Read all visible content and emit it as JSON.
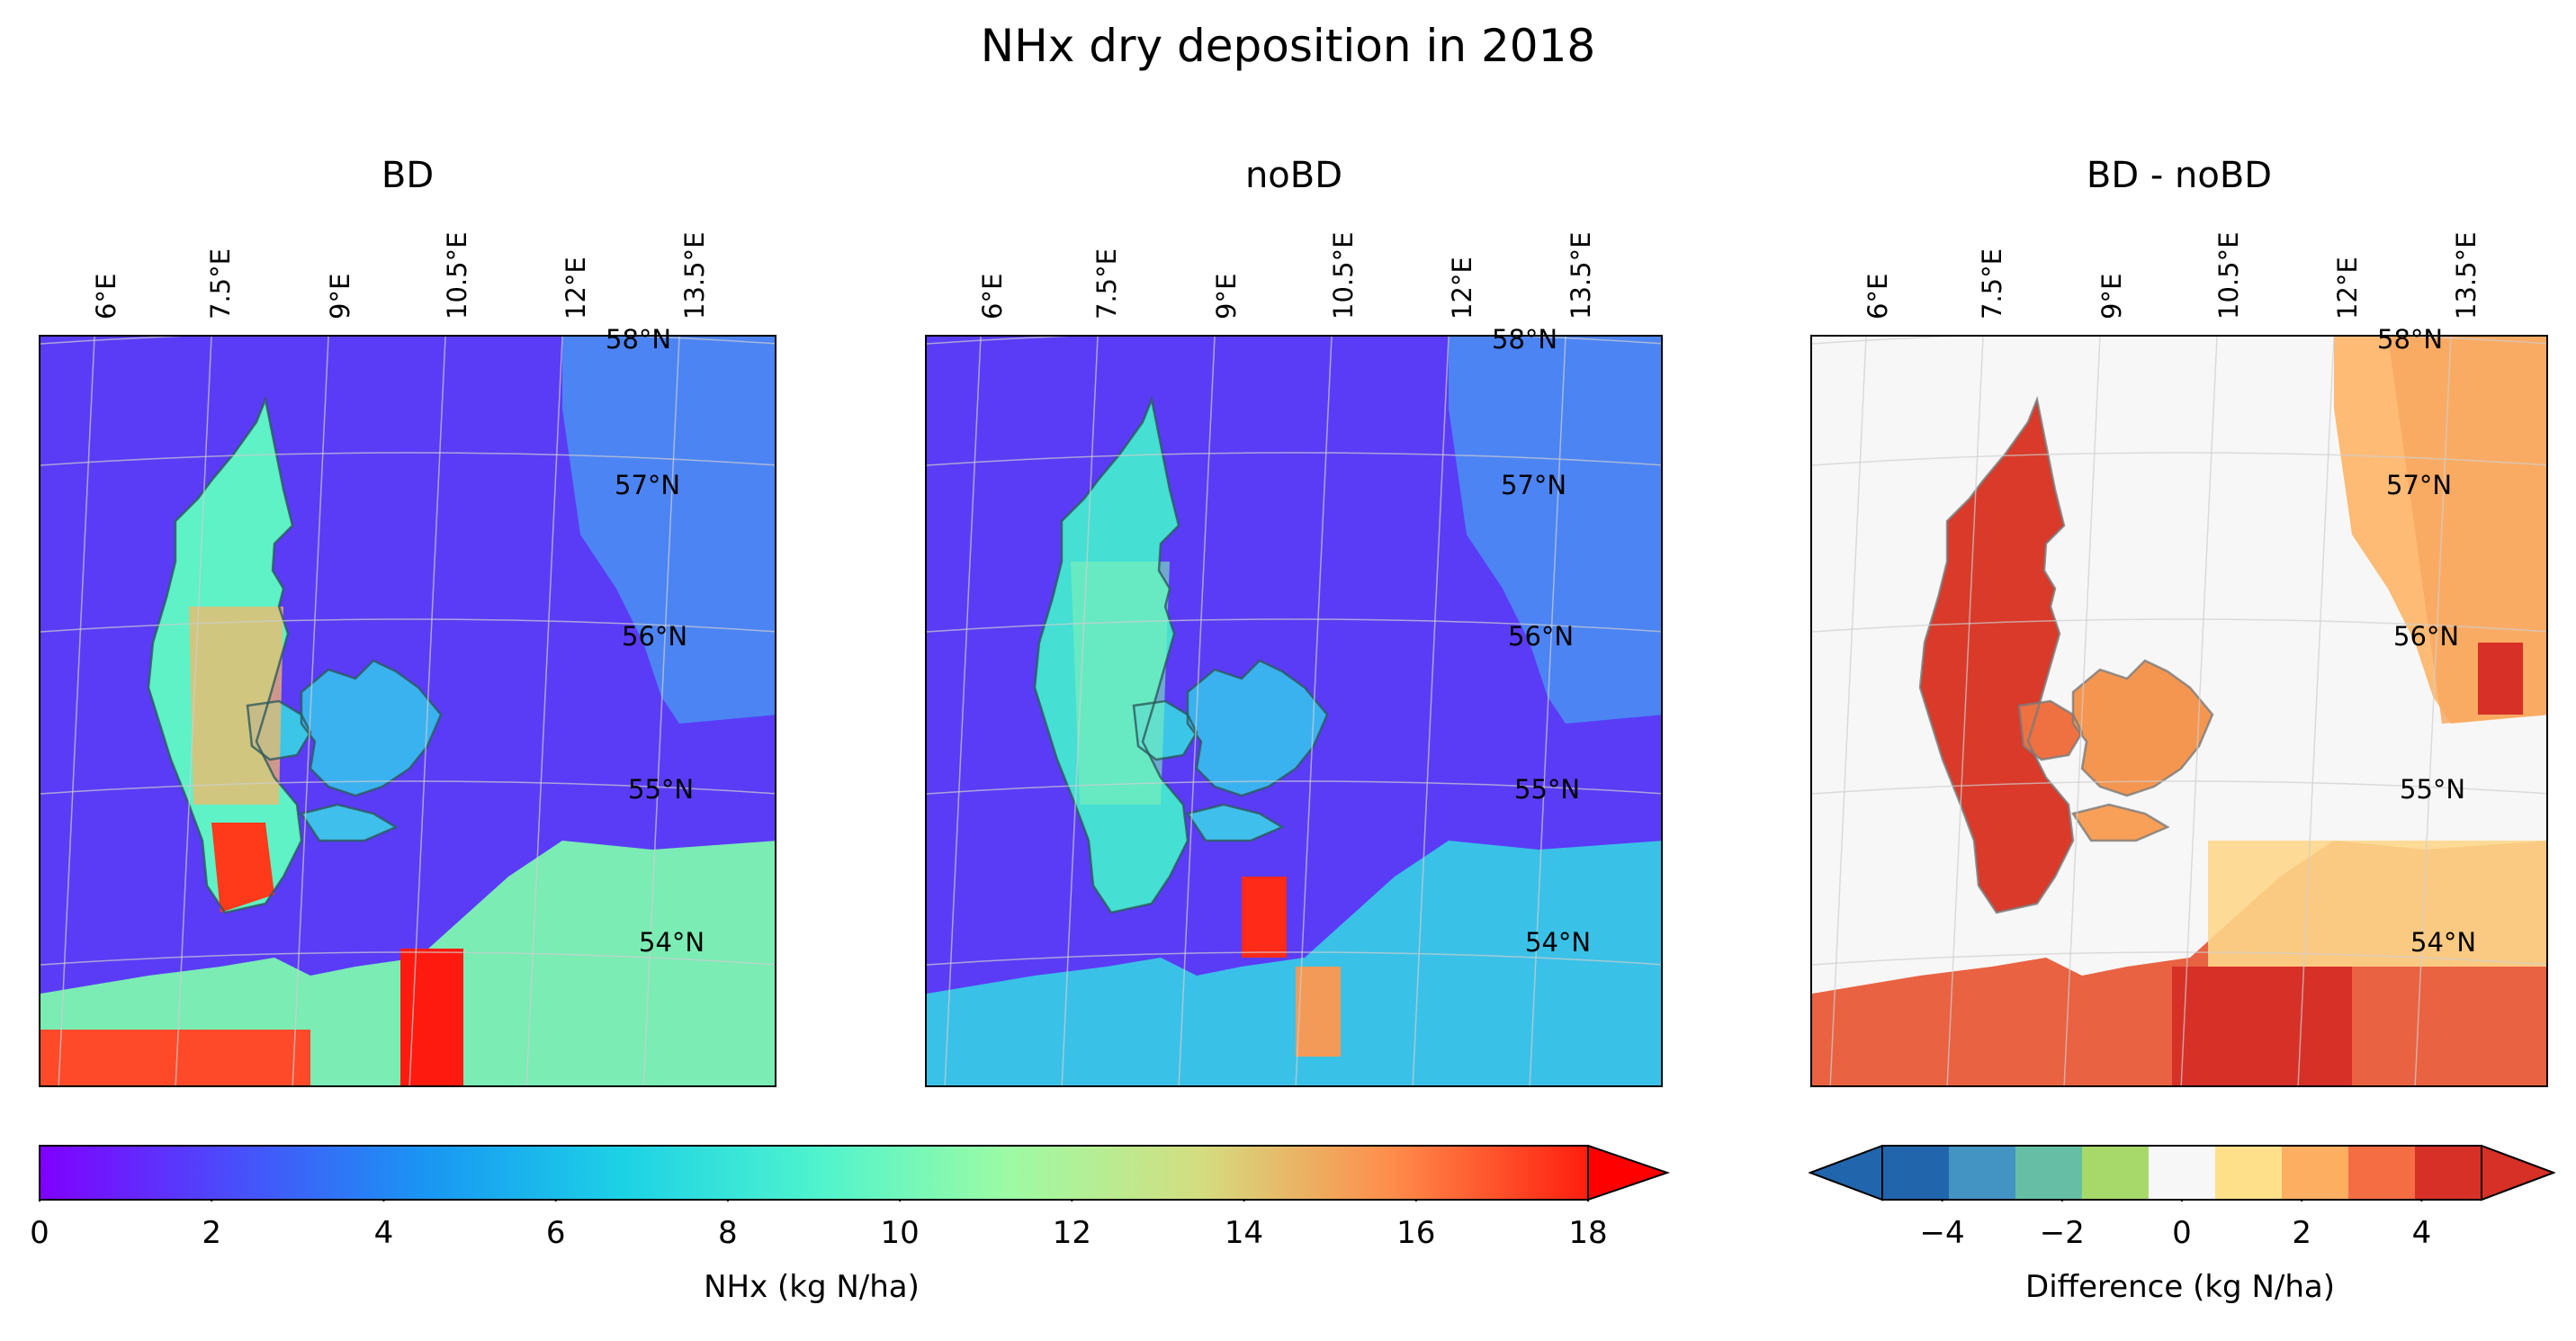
{
  "title": "NHx dry deposition in 2018",
  "panels": [
    {
      "title": "BD"
    },
    {
      "title": "noBD"
    },
    {
      "title": "BD - noBD"
    }
  ],
  "lon_labels": [
    "6°E",
    "7.5°E",
    "9°E",
    "10.5°E",
    "12°E",
    "13.5°E"
  ],
  "lat_labels": [
    "58°N",
    "57°N",
    "56°N",
    "55°N",
    "54°N"
  ],
  "colorbar_nhx": {
    "label": "NHx (kg N/ha)",
    "ticks": [
      "0",
      "2",
      "4",
      "6",
      "8",
      "10",
      "12",
      "14",
      "16",
      "18"
    ],
    "min": 0,
    "max": 18,
    "extend": "max",
    "colormap": "rainbow"
  },
  "colorbar_diff": {
    "label": "Difference (kg N/ha)",
    "ticks": [
      "−4",
      "−2",
      "0",
      "2",
      "4"
    ],
    "min": -5,
    "max": 5,
    "extend": "both",
    "colors": [
      "#2166ac",
      "#4393c3",
      "#66bfa5",
      "#a6d96a",
      "#f7f7f7",
      "#fee08b",
      "#fdae61",
      "#f46d43",
      "#d73027"
    ]
  },
  "sea_color_nhx": "#5a3cf6",
  "sea_color_diff": "#f7f7f7"
}
